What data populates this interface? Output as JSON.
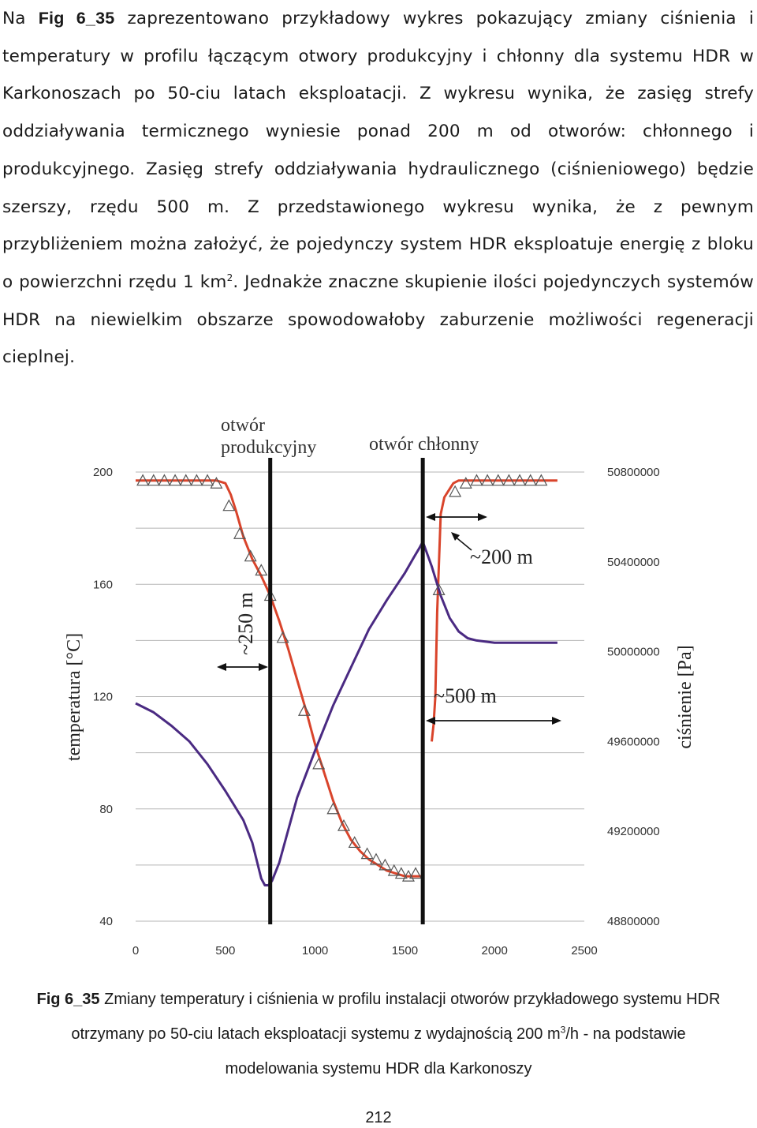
{
  "paragraph": {
    "p1": "Na ",
    "fig_ref": "Fig 6_35",
    "p2": " zaprezentowano przykładowy wykres pokazujący zmiany ciśnienia i temperatury w profilu łączącym otwory produkcyjny i chłonny dla systemu HDR w Karkonoszach po 50-ciu latach eksploatacji. Z wykresu wynika, że zasięg strefy oddziaływania termicznego wyniesie ponad 200 m od otworów: chłonnego i produkcyjnego. Zasięg strefy oddziaływania hydraulicznego (ciśnieniowego) będzie szerszy, rzędu 500 m. Z przedstawionego wykresu wynika, że z pewnym przybliżeniem można założyć, że pojedynczy system HDR eksploatuje energię z bloku o powierzchni rzędu 1 km",
    "sup": "2",
    "p3": ". Jednakże znaczne skupienie ilości pojedynczych systemów HDR na niewielkim obszarze spowodowałoby zaburzenie możliwości regeneracji cieplnej."
  },
  "chart_data": {
    "type": "line",
    "title": "",
    "ylabel_left": "temperatura [°C]",
    "ylabel_right": "ciśnienie [Pa]",
    "xlabel": "",
    "xlim": [
      0,
      2500
    ],
    "ylim_left": [
      40,
      200
    ],
    "ylim_right": [
      48800000,
      50800000
    ],
    "x_ticks": [
      "0",
      "500",
      "1000",
      "1500",
      "2000",
      "2500"
    ],
    "y_ticks_left": [
      "40",
      "80",
      "120",
      "160",
      "200"
    ],
    "y_ticks_right": [
      "48800000",
      "49200000",
      "49600000",
      "50000000",
      "50400000",
      "50800000"
    ],
    "grid": "horizontal",
    "series_colors": {
      "temperature": "#d9442b",
      "pressure": "#4a2a82",
      "wells": "#111111"
    },
    "wells": [
      {
        "name": "otwór produkcyjny",
        "x": 750
      },
      {
        "name": "otwór chłonny",
        "x": 1600
      }
    ],
    "annotations": [
      {
        "text": "~250 m",
        "x_from": 450,
        "x_to": 750,
        "y": 110
      },
      {
        "text": "~200 m",
        "x_from": 1600,
        "x_to": 1800,
        "y": 158
      },
      {
        "text": "~500 m",
        "x_from": 1600,
        "x_to": 2100,
        "y": 118
      }
    ],
    "series": [
      {
        "axis": "left",
        "x": [
          0,
          100,
          200,
          300,
          400,
          450,
          500,
          530,
          560,
          600,
          650,
          700,
          750,
          800,
          850,
          900,
          950,
          1000,
          1050,
          1100,
          1150,
          1200,
          1250,
          1300,
          1350,
          1400,
          1450,
          1500,
          1550,
          1600
        ],
        "y": [
          197,
          197,
          197,
          197,
          197,
          197,
          196,
          192,
          186,
          177,
          169,
          163,
          156,
          147,
          137,
          126,
          115,
          103,
          93,
          83,
          75,
          69,
          65,
          62,
          60,
          58,
          57,
          56,
          56,
          56
        ]
      },
      {
        "axis": "left",
        "x": [
          1650,
          1660,
          1670,
          1680,
          1700,
          1720,
          1750,
          1770,
          1800,
          1850,
          1900,
          2000,
          2100,
          2200,
          2300,
          2350
        ],
        "y": [
          104,
          110,
          120,
          150,
          185,
          191,
          194,
          196,
          197,
          197,
          197,
          197,
          197,
          197,
          197,
          197
        ]
      },
      {
        "axis": "right",
        "x": [
          0,
          100,
          200,
          300,
          400,
          500,
          600,
          650,
          700,
          720,
          740,
          760,
          800,
          900,
          1000,
          1100,
          1200,
          1300,
          1400,
          1500,
          1550,
          1580,
          1600,
          1650,
          1700,
          1750,
          1800,
          1850,
          1900,
          2000,
          2100,
          2200,
          2300,
          2350
        ],
        "y": [
          49770000,
          49730000,
          49670000,
          49600000,
          49500000,
          49380000,
          49250000,
          49150000,
          48990000,
          48960000,
          48960000,
          48980000,
          49060000,
          49350000,
          49560000,
          49760000,
          49930000,
          50100000,
          50230000,
          50350000,
          50420000,
          50460000,
          50490000,
          50380000,
          50250000,
          50150000,
          50090000,
          50060000,
          50050000,
          50040000,
          50040000,
          50040000,
          50040000,
          50040000
        ]
      }
    ],
    "triangle_markers": {
      "x": [
        40,
        100,
        160,
        220,
        280,
        340,
        400,
        450,
        520,
        580,
        640,
        700,
        750,
        820,
        940,
        1020,
        1100,
        1160,
        1220,
        1290,
        1340,
        1390,
        1440,
        1480,
        1520,
        1560,
        1690,
        1780,
        1840,
        1900,
        1960,
        2020,
        2080,
        2140,
        2200,
        2260
      ],
      "y": [
        197,
        197,
        197,
        197,
        197,
        197,
        197,
        196,
        188,
        178,
        170,
        165,
        156,
        141,
        115,
        96,
        80,
        74,
        68,
        64,
        62,
        60,
        58,
        57,
        56,
        57,
        158,
        193,
        196,
        197,
        197,
        197,
        197,
        197,
        197,
        197
      ]
    },
    "legend": ""
  },
  "caption": {
    "label": "Fig 6_35",
    "line1": " Zmiany temperatury i ciśnienia w profilu instalacji otworów przykładowego systemu HDR",
    "line2a": "otrzymany po 50-ciu latach eksploatacji systemu z wydajnością 200 m",
    "line2sup": "3",
    "line2b": "/h - na podstawie",
    "line3": "modelowania systemu HDR dla Karkonoszy"
  },
  "page_number": "212"
}
